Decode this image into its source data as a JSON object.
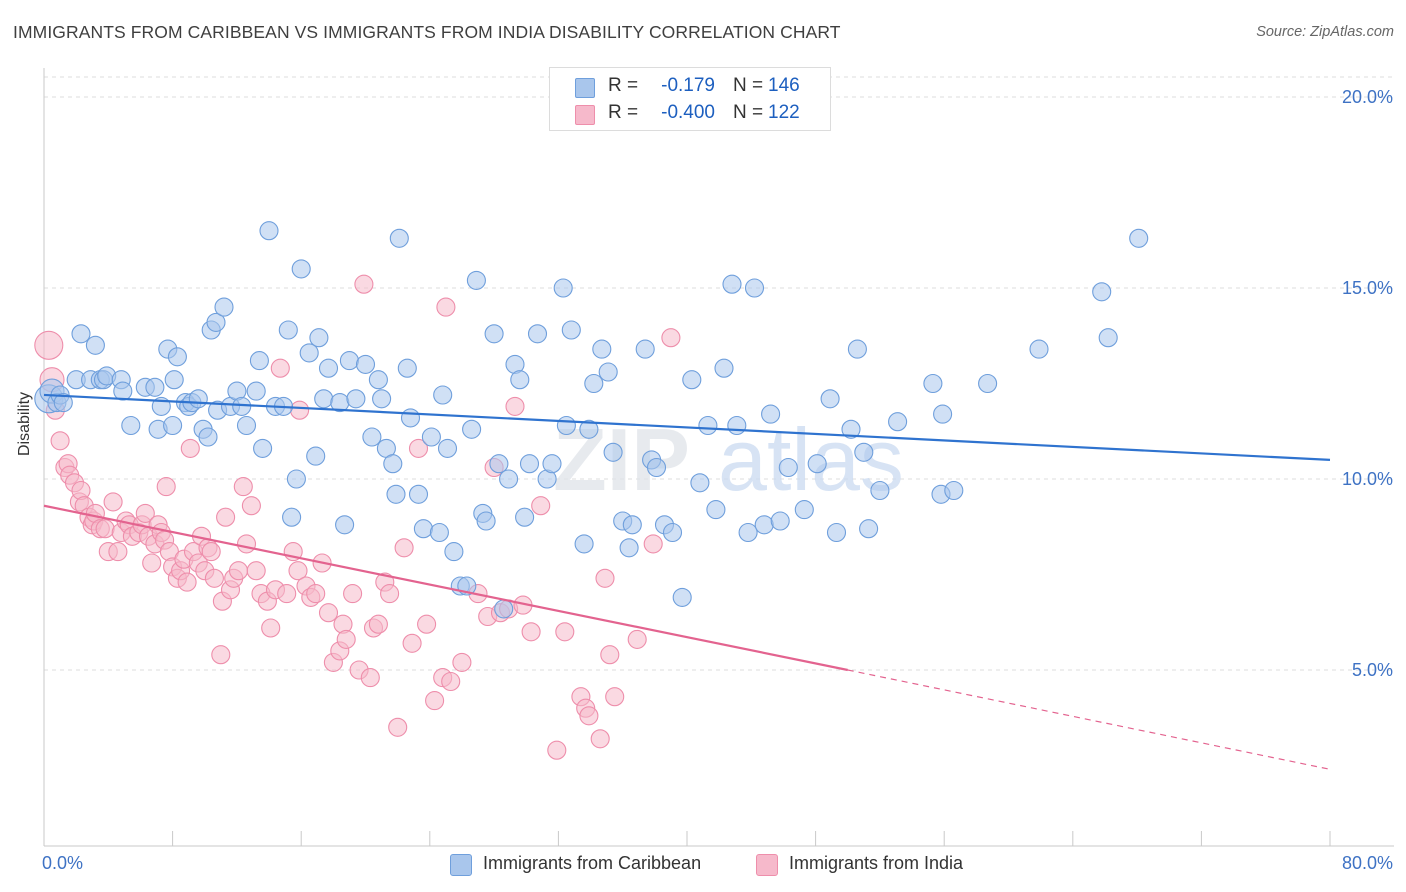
{
  "header": {
    "title": "IMMIGRANTS FROM CARIBBEAN VS IMMIGRANTS FROM INDIA DISABILITY CORRELATION CHART",
    "source": "Source: ZipAtlas.com"
  },
  "watermark": {
    "zip": "ZIP",
    "atlas": "atlas"
  },
  "colors": {
    "blue_fill": "#a9c6ec",
    "blue_stroke": "#6f9fdc",
    "blue_line": "#2f73cf",
    "pink_fill": "#f6b9cb",
    "pink_stroke": "#ee8eab",
    "pink_line": "#e3638f",
    "grid": "#dddddd",
    "axis_text": "#3e72c4"
  },
  "legend_top": {
    "rows": [
      {
        "r_label": "R =",
        "r_value": "-0.179",
        "n_label": "N =",
        "n_value": "146"
      },
      {
        "r_label": "R =",
        "r_value": "-0.400",
        "n_label": "N =",
        "n_value": "122"
      }
    ]
  },
  "chart_data": {
    "type": "scatter",
    "title": "IMMIGRANTS FROM CARIBBEAN VS IMMIGRANTS FROM INDIA DISABILITY CORRELATION CHART",
    "xlabel": "",
    "ylabel": "Disability",
    "x_tick_labels": {
      "min": "0.0%",
      "max": "80.0%"
    },
    "y_tick_labels": [
      "20.0%",
      "15.0%",
      "10.0%",
      "5.0%"
    ],
    "xlim": [
      0,
      80
    ],
    "ylim": [
      0,
      20.5
    ],
    "y_ticks": [
      20,
      15,
      10,
      5
    ],
    "legend": [
      "Immigrants from Caribbean",
      "Immigrants from India"
    ],
    "series": [
      {
        "name": "Immigrants from Caribbean",
        "r": -0.179,
        "n": 146,
        "trend": {
          "x0": 0,
          "y0": 12.2,
          "x1": 80,
          "y1": 10.5
        },
        "points": [
          [
            0.3,
            12.1
          ],
          [
            0.5,
            12.3
          ],
          [
            0.8,
            12.0
          ],
          [
            1.0,
            12.2
          ],
          [
            1.2,
            12.0
          ],
          [
            2.0,
            12.6
          ],
          [
            2.3,
            13.8
          ],
          [
            2.9,
            12.6
          ],
          [
            3.2,
            13.5
          ],
          [
            3.5,
            12.6
          ],
          [
            3.7,
            12.6
          ],
          [
            3.9,
            12.7
          ],
          [
            4.8,
            12.6
          ],
          [
            4.9,
            12.3
          ],
          [
            5.4,
            11.4
          ],
          [
            6.3,
            12.4
          ],
          [
            6.9,
            12.4
          ],
          [
            7.1,
            11.3
          ],
          [
            7.3,
            11.9
          ],
          [
            7.7,
            13.4
          ],
          [
            8.0,
            11.4
          ],
          [
            8.1,
            12.6
          ],
          [
            8.3,
            13.2
          ],
          [
            8.8,
            12.0
          ],
          [
            9.0,
            11.9
          ],
          [
            9.2,
            12.0
          ],
          [
            9.6,
            12.1
          ],
          [
            9.9,
            11.3
          ],
          [
            10.2,
            11.1
          ],
          [
            10.4,
            13.9
          ],
          [
            10.7,
            14.1
          ],
          [
            10.8,
            11.8
          ],
          [
            11.2,
            14.5
          ],
          [
            11.6,
            11.9
          ],
          [
            12.0,
            12.3
          ],
          [
            12.3,
            11.9
          ],
          [
            12.6,
            11.4
          ],
          [
            13.2,
            12.3
          ],
          [
            13.4,
            13.1
          ],
          [
            13.6,
            10.8
          ],
          [
            14.0,
            16.5
          ],
          [
            14.4,
            11.9
          ],
          [
            14.9,
            11.9
          ],
          [
            15.2,
            13.9
          ],
          [
            15.4,
            9.0
          ],
          [
            15.7,
            10.0
          ],
          [
            16.0,
            15.5
          ],
          [
            16.5,
            13.3
          ],
          [
            16.9,
            10.6
          ],
          [
            17.1,
            13.7
          ],
          [
            17.4,
            12.1
          ],
          [
            17.7,
            12.9
          ],
          [
            18.4,
            12.0
          ],
          [
            18.7,
            8.8
          ],
          [
            19.0,
            13.1
          ],
          [
            19.4,
            12.1
          ],
          [
            20.0,
            13.0
          ],
          [
            20.4,
            11.1
          ],
          [
            20.8,
            12.6
          ],
          [
            21.0,
            12.1
          ],
          [
            21.3,
            10.8
          ],
          [
            21.7,
            10.4
          ],
          [
            21.9,
            9.6
          ],
          [
            22.1,
            16.3
          ],
          [
            22.6,
            12.9
          ],
          [
            22.8,
            11.6
          ],
          [
            23.3,
            9.6
          ],
          [
            23.6,
            8.7
          ],
          [
            24.1,
            11.1
          ],
          [
            24.6,
            8.6
          ],
          [
            24.8,
            12.2
          ],
          [
            25.1,
            10.8
          ],
          [
            25.5,
            8.1
          ],
          [
            25.9,
            7.2
          ],
          [
            26.3,
            7.2
          ],
          [
            26.6,
            11.3
          ],
          [
            26.9,
            15.2
          ],
          [
            27.3,
            9.1
          ],
          [
            27.5,
            8.9
          ],
          [
            28.0,
            13.8
          ],
          [
            28.3,
            10.4
          ],
          [
            28.6,
            6.6
          ],
          [
            28.9,
            10.0
          ],
          [
            29.3,
            13.0
          ],
          [
            29.6,
            12.6
          ],
          [
            29.9,
            9.0
          ],
          [
            30.2,
            10.4
          ],
          [
            30.7,
            13.8
          ],
          [
            31.3,
            10.0
          ],
          [
            31.6,
            10.4
          ],
          [
            32.3,
            15.0
          ],
          [
            32.5,
            11.4
          ],
          [
            32.8,
            13.9
          ],
          [
            33.6,
            8.3
          ],
          [
            33.9,
            11.3
          ],
          [
            34.2,
            12.5
          ],
          [
            34.7,
            13.4
          ],
          [
            35.1,
            12.8
          ],
          [
            35.4,
            10.7
          ],
          [
            36.0,
            8.9
          ],
          [
            36.4,
            8.2
          ],
          [
            36.6,
            8.8
          ],
          [
            37.4,
            13.4
          ],
          [
            37.8,
            10.5
          ],
          [
            38.1,
            10.3
          ],
          [
            38.6,
            8.8
          ],
          [
            39.1,
            8.6
          ],
          [
            39.7,
            6.9
          ],
          [
            40.3,
            12.6
          ],
          [
            40.8,
            9.9
          ],
          [
            41.3,
            11.4
          ],
          [
            41.8,
            9.2
          ],
          [
            42.3,
            12.9
          ],
          [
            42.8,
            15.1
          ],
          [
            43.1,
            11.4
          ],
          [
            43.8,
            8.6
          ],
          [
            44.2,
            15.0
          ],
          [
            44.8,
            8.8
          ],
          [
            45.2,
            11.7
          ],
          [
            45.8,
            8.9
          ],
          [
            46.3,
            10.3
          ],
          [
            47.3,
            9.2
          ],
          [
            48.1,
            10.4
          ],
          [
            48.9,
            12.1
          ],
          [
            49.3,
            8.6
          ],
          [
            50.2,
            11.3
          ],
          [
            50.6,
            13.4
          ],
          [
            51.0,
            10.7
          ],
          [
            51.3,
            8.7
          ],
          [
            52.0,
            9.7
          ],
          [
            53.1,
            11.5
          ],
          [
            55.3,
            12.5
          ],
          [
            55.8,
            9.6
          ],
          [
            55.9,
            11.7
          ],
          [
            56.6,
            9.7
          ],
          [
            58.7,
            12.5
          ],
          [
            61.9,
            13.4
          ],
          [
            65.8,
            14.9
          ],
          [
            66.2,
            13.7
          ],
          [
            68.1,
            16.3
          ]
        ]
      },
      {
        "name": "Immigrants from India",
        "r": -0.4,
        "n": 122,
        "trend": {
          "x0": 0,
          "y0": 9.3,
          "x1": 50,
          "y1": 5.0
        },
        "trend_dashed": {
          "x0": 50,
          "y0": 5.0,
          "x1": 80,
          "y1": 2.4
        },
        "points": [
          [
            0.3,
            13.5
          ],
          [
            0.5,
            12.6
          ],
          [
            0.7,
            11.8
          ],
          [
            1.0,
            11.0
          ],
          [
            1.3,
            10.3
          ],
          [
            1.5,
            10.4
          ],
          [
            1.6,
            10.1
          ],
          [
            1.9,
            9.9
          ],
          [
            2.2,
            9.4
          ],
          [
            2.3,
            9.7
          ],
          [
            2.5,
            9.3
          ],
          [
            2.8,
            9.0
          ],
          [
            3.0,
            8.8
          ],
          [
            3.1,
            8.9
          ],
          [
            3.2,
            9.1
          ],
          [
            3.5,
            8.7
          ],
          [
            3.8,
            8.7
          ],
          [
            4.0,
            8.1
          ],
          [
            4.3,
            9.4
          ],
          [
            4.6,
            8.1
          ],
          [
            4.8,
            8.6
          ],
          [
            5.1,
            8.9
          ],
          [
            5.3,
            8.8
          ],
          [
            5.5,
            8.5
          ],
          [
            5.9,
            8.6
          ],
          [
            6.1,
            8.8
          ],
          [
            6.3,
            9.1
          ],
          [
            6.5,
            8.5
          ],
          [
            6.7,
            7.8
          ],
          [
            6.9,
            8.3
          ],
          [
            7.1,
            8.8
          ],
          [
            7.3,
            8.6
          ],
          [
            7.5,
            8.4
          ],
          [
            7.6,
            9.8
          ],
          [
            7.8,
            8.1
          ],
          [
            8.0,
            7.7
          ],
          [
            8.3,
            7.4
          ],
          [
            8.5,
            7.6
          ],
          [
            8.7,
            7.9
          ],
          [
            8.9,
            7.3
          ],
          [
            9.1,
            10.8
          ],
          [
            9.3,
            8.1
          ],
          [
            9.6,
            7.8
          ],
          [
            9.8,
            8.5
          ],
          [
            10.0,
            7.6
          ],
          [
            10.2,
            8.2
          ],
          [
            10.4,
            8.1
          ],
          [
            10.6,
            7.4
          ],
          [
            11.0,
            5.4
          ],
          [
            11.1,
            6.8
          ],
          [
            11.3,
            9.0
          ],
          [
            11.6,
            7.1
          ],
          [
            11.8,
            7.4
          ],
          [
            12.1,
            7.6
          ],
          [
            12.4,
            9.8
          ],
          [
            12.6,
            8.3
          ],
          [
            12.9,
            9.3
          ],
          [
            13.2,
            7.6
          ],
          [
            13.5,
            7.0
          ],
          [
            13.9,
            6.8
          ],
          [
            14.1,
            6.1
          ],
          [
            14.4,
            7.1
          ],
          [
            14.7,
            12.9
          ],
          [
            15.1,
            7.0
          ],
          [
            15.5,
            8.1
          ],
          [
            15.8,
            7.6
          ],
          [
            15.9,
            11.8
          ],
          [
            16.3,
            7.2
          ],
          [
            16.6,
            6.9
          ],
          [
            16.9,
            7.0
          ],
          [
            17.3,
            7.8
          ],
          [
            17.7,
            6.5
          ],
          [
            18.0,
            5.2
          ],
          [
            18.4,
            5.5
          ],
          [
            18.6,
            6.2
          ],
          [
            18.8,
            5.8
          ],
          [
            19.2,
            7.0
          ],
          [
            19.6,
            5.0
          ],
          [
            19.9,
            15.1
          ],
          [
            20.3,
            4.8
          ],
          [
            20.5,
            6.1
          ],
          [
            20.8,
            6.2
          ],
          [
            21.2,
            7.3
          ],
          [
            21.5,
            7.0
          ],
          [
            22.0,
            3.5
          ],
          [
            22.4,
            8.2
          ],
          [
            22.9,
            5.7
          ],
          [
            23.3,
            10.8
          ],
          [
            23.8,
            6.2
          ],
          [
            24.3,
            4.2
          ],
          [
            24.8,
            4.8
          ],
          [
            25.0,
            14.5
          ],
          [
            25.3,
            4.7
          ],
          [
            26.0,
            5.2
          ],
          [
            27.0,
            7.0
          ],
          [
            27.6,
            6.4
          ],
          [
            28.0,
            10.3
          ],
          [
            28.4,
            6.5
          ],
          [
            28.9,
            6.6
          ],
          [
            29.3,
            11.9
          ],
          [
            29.8,
            6.7
          ],
          [
            30.3,
            6.0
          ],
          [
            30.9,
            9.3
          ],
          [
            31.9,
            2.9
          ],
          [
            32.4,
            6.0
          ],
          [
            33.4,
            4.3
          ],
          [
            33.7,
            4.0
          ],
          [
            33.9,
            3.8
          ],
          [
            34.6,
            3.2
          ],
          [
            34.9,
            7.4
          ],
          [
            35.2,
            5.4
          ],
          [
            35.5,
            4.3
          ],
          [
            36.9,
            5.8
          ],
          [
            37.9,
            8.3
          ],
          [
            39.0,
            13.7
          ]
        ]
      }
    ]
  }
}
